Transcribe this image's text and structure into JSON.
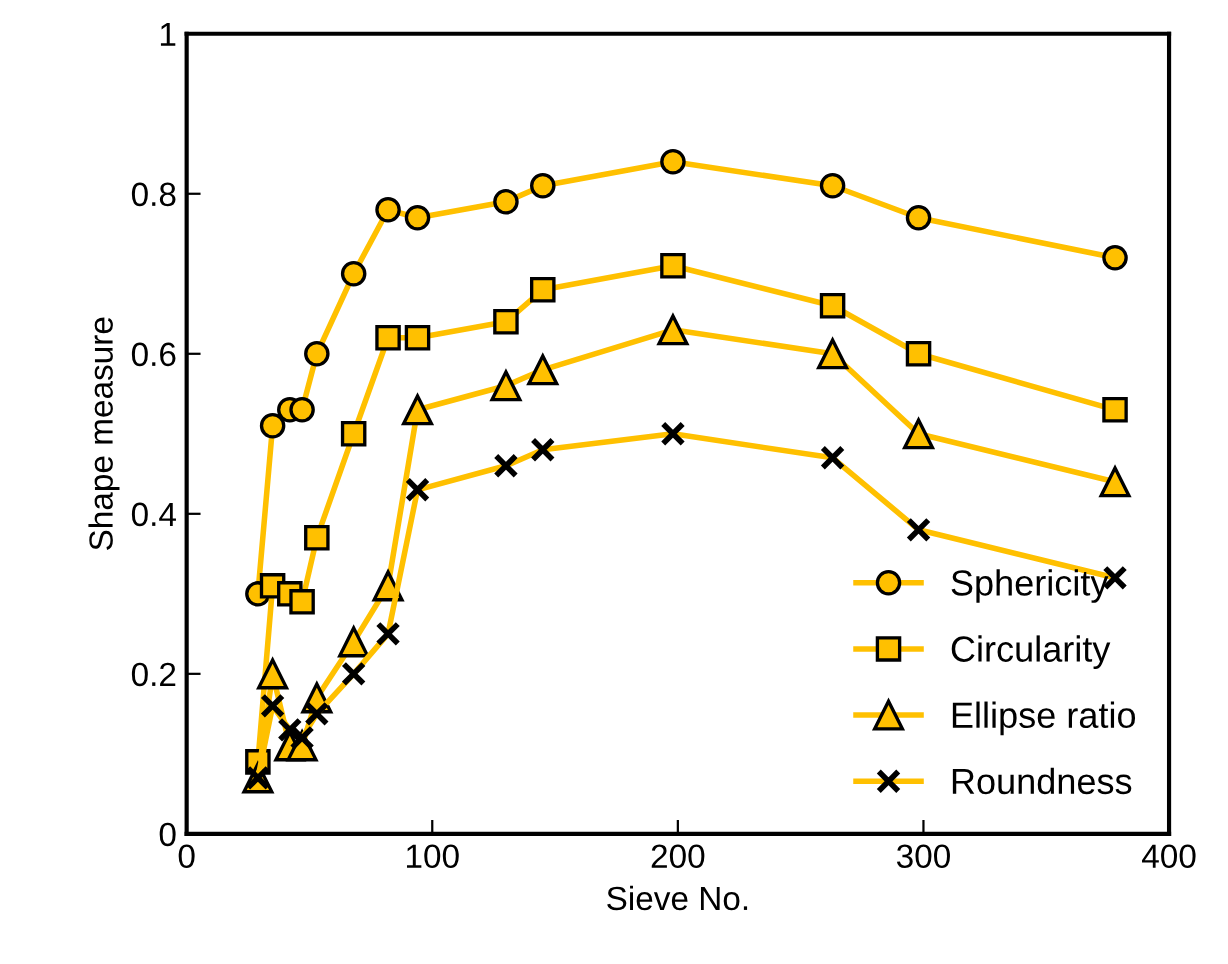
{
  "chart_data": {
    "type": "line",
    "xlabel": "Sieve No.",
    "ylabel": "Shape measure",
    "x": [
      29,
      35,
      42,
      47,
      53,
      68,
      82,
      94,
      130,
      145,
      198,
      263,
      298,
      378
    ],
    "xlim": [
      0,
      400
    ],
    "xticks": [
      0,
      100,
      200,
      300,
      400
    ],
    "ylim": [
      0,
      1
    ],
    "yticks": [
      0,
      0.2,
      0.4,
      0.6,
      0.8,
      1
    ],
    "grid": false,
    "legend": "bottom right",
    "series": [
      {
        "name": "Sphericity",
        "color": "#ffc000",
        "marker": "circle",
        "values": [
          0.3,
          0.51,
          0.53,
          0.53,
          0.6,
          0.7,
          0.78,
          0.77,
          0.79,
          0.81,
          0.84,
          0.81,
          0.77,
          0.72
        ]
      },
      {
        "name": "Circularity",
        "color": "#ffc000",
        "marker": "square",
        "values": [
          0.09,
          0.31,
          0.3,
          0.29,
          0.37,
          0.5,
          0.62,
          0.62,
          0.64,
          0.68,
          0.71,
          0.66,
          0.6,
          0.53
        ]
      },
      {
        "name": "Ellipse ratio",
        "color": "#ffc000",
        "marker": "triangle",
        "values": [
          0.07,
          0.2,
          0.11,
          0.11,
          0.17,
          0.24,
          0.31,
          0.53,
          0.56,
          0.58,
          0.63,
          0.6,
          0.5,
          0.44
        ]
      },
      {
        "name": "Roundness",
        "color": "#ffc000",
        "marker": "cross",
        "values": [
          0.07,
          0.16,
          0.13,
          0.12,
          0.15,
          0.2,
          0.25,
          0.43,
          0.46,
          0.48,
          0.5,
          0.47,
          0.38,
          0.32
        ]
      }
    ]
  }
}
